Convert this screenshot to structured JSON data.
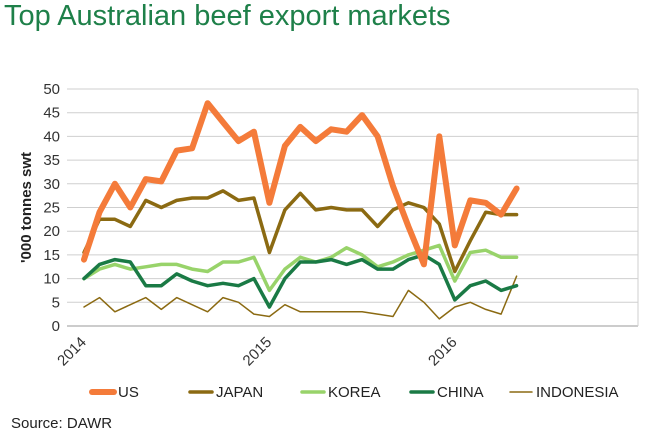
{
  "title": "Top Australian beef export markets",
  "source": "Source: DAWR",
  "chart_data": {
    "type": "line",
    "ylabel": "'000 tonnes swt",
    "ylim": [
      0,
      50
    ],
    "yticks": [
      0,
      5,
      10,
      15,
      20,
      25,
      30,
      35,
      40,
      45,
      50
    ],
    "xtick_labels": [
      "2014",
      "2015",
      "2016"
    ],
    "grid": true,
    "legend_position": "bottom",
    "series": [
      {
        "name": "US",
        "color": "#f47b3a",
        "width": 6,
        "values": [
          14,
          24,
          30,
          25,
          31,
          30.5,
          37,
          37.5,
          47,
          43,
          39,
          41,
          26,
          38,
          42,
          39,
          41.5,
          41,
          44.5,
          40,
          29.5,
          21,
          13,
          40,
          17,
          26.5,
          26,
          23.5,
          29
        ]
      },
      {
        "name": "JAPAN",
        "color": "#8b6a12",
        "width": 3.5,
        "values": [
          15.5,
          22.5,
          22.5,
          21,
          26.5,
          25,
          26.5,
          27,
          27,
          28.5,
          26.5,
          27,
          15.5,
          24.5,
          28,
          24.5,
          25,
          24.5,
          24.5,
          21,
          24.5,
          26,
          25,
          21.5,
          11.5,
          18,
          24,
          23.5,
          23.5
        ]
      },
      {
        "name": "KOREA",
        "color": "#98d36a",
        "width": 3.5,
        "values": [
          10,
          12,
          13,
          12,
          12.5,
          13,
          13,
          12,
          11.5,
          13.5,
          13.5,
          14.5,
          7.5,
          12,
          14.5,
          13.5,
          14.5,
          16.5,
          15,
          12.5,
          13.5,
          15,
          16,
          17,
          9.5,
          15.5,
          16,
          14.5,
          14.5
        ]
      },
      {
        "name": "CHINA",
        "color": "#1a7a45",
        "width": 3.5,
        "values": [
          10,
          13,
          14,
          13.5,
          8.5,
          8.5,
          11,
          9.5,
          8.5,
          9,
          8.5,
          10,
          4,
          10,
          13.5,
          13.5,
          14,
          13,
          14,
          12,
          12,
          14,
          15,
          13,
          5.5,
          8.5,
          9.5,
          7.5,
          8.5
        ]
      },
      {
        "name": "INDONESIA",
        "color": "#8b6a12",
        "width": 1.5,
        "values": [
          4,
          6,
          3,
          4.5,
          6,
          3.5,
          6,
          4.5,
          3,
          6,
          5,
          2.5,
          2,
          4.5,
          3,
          3,
          3,
          3,
          3,
          2.5,
          2,
          7.5,
          5,
          1.5,
          4,
          5,
          3.5,
          2.5,
          10.5
        ]
      }
    ]
  }
}
